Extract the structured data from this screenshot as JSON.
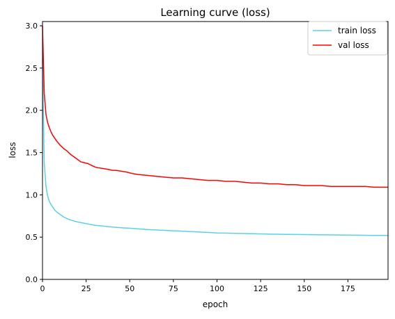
{
  "chart_data": {
    "type": "line",
    "title": "Learning curve (loss)",
    "xlabel": "epoch",
    "ylabel": "loss",
    "xlim": [
      0,
      198
    ],
    "ylim": [
      0.0,
      3.05
    ],
    "x_ticks": [
      0,
      25,
      50,
      75,
      100,
      125,
      150,
      175
    ],
    "x_tick_labels": [
      "0",
      "25",
      "50",
      "75",
      "100",
      "125",
      "150",
      "175"
    ],
    "y_ticks": [
      0.0,
      0.5,
      1.0,
      1.5,
      2.0,
      2.5,
      3.0
    ],
    "y_tick_labels": [
      "0.0",
      "0.5",
      "1.0",
      "1.5",
      "2.0",
      "2.5",
      "3.0"
    ],
    "grid": false,
    "legend_position": "top-right",
    "series": [
      {
        "name": "train loss",
        "color": "#5bd0eb",
        "x": [
          0,
          1,
          2,
          3,
          4,
          5,
          6,
          7,
          8,
          10,
          12,
          15,
          18,
          20,
          25,
          30,
          35,
          40,
          45,
          50,
          60,
          70,
          80,
          90,
          100,
          110,
          120,
          130,
          140,
          150,
          160,
          170,
          180,
          190,
          198
        ],
        "y": [
          2.6,
          1.38,
          1.1,
          0.98,
          0.92,
          0.88,
          0.85,
          0.82,
          0.8,
          0.77,
          0.74,
          0.71,
          0.69,
          0.68,
          0.66,
          0.64,
          0.63,
          0.62,
          0.61,
          0.605,
          0.59,
          0.58,
          0.57,
          0.56,
          0.55,
          0.545,
          0.54,
          0.535,
          0.532,
          0.53,
          0.527,
          0.525,
          0.523,
          0.52,
          0.52
        ]
      },
      {
        "name": "val loss",
        "color": "#ff0000",
        "x": [
          0,
          1,
          2,
          3,
          4,
          5,
          6,
          7,
          8,
          10,
          12,
          14,
          16,
          18,
          20,
          22,
          24,
          26,
          28,
          30,
          32,
          35,
          38,
          40,
          42,
          45,
          48,
          50,
          52,
          55,
          60,
          65,
          70,
          75,
          80,
          85,
          90,
          95,
          100,
          105,
          110,
          115,
          120,
          125,
          130,
          135,
          140,
          145,
          150,
          155,
          160,
          165,
          170,
          175,
          180,
          185,
          190,
          195,
          198
        ],
        "y": [
          3.0,
          2.2,
          1.95,
          1.85,
          1.79,
          1.74,
          1.7,
          1.67,
          1.64,
          1.59,
          1.55,
          1.52,
          1.48,
          1.45,
          1.42,
          1.39,
          1.38,
          1.37,
          1.35,
          1.33,
          1.32,
          1.31,
          1.3,
          1.29,
          1.29,
          1.28,
          1.27,
          1.26,
          1.25,
          1.24,
          1.23,
          1.22,
          1.21,
          1.2,
          1.2,
          1.19,
          1.18,
          1.17,
          1.17,
          1.16,
          1.16,
          1.15,
          1.14,
          1.14,
          1.13,
          1.13,
          1.12,
          1.12,
          1.11,
          1.11,
          1.11,
          1.1,
          1.1,
          1.1,
          1.1,
          1.1,
          1.09,
          1.09,
          1.09
        ]
      }
    ]
  }
}
